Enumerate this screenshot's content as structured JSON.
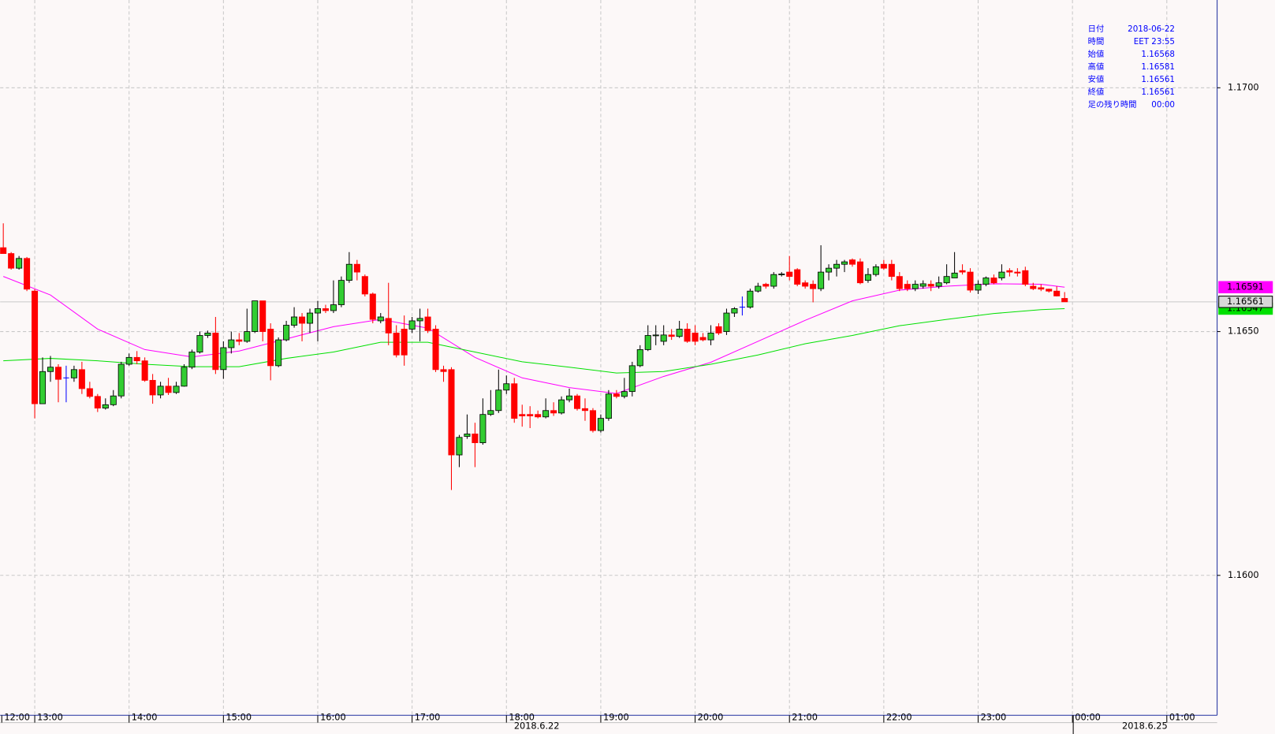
{
  "chart_data": {
    "type": "candlestick",
    "x": [
      760,
      765,
      770,
      775,
      780,
      785,
      790,
      795,
      800,
      805,
      810,
      815,
      820,
      825,
      830,
      835,
      840,
      845,
      850,
      855,
      860,
      865,
      870,
      875,
      880,
      885,
      890,
      895,
      900,
      905,
      910,
      915,
      920,
      925,
      930,
      935,
      940,
      945,
      950,
      955,
      960,
      965,
      970,
      975,
      980,
      985,
      990,
      995,
      1000,
      1005,
      1010,
      1015,
      1020,
      1025,
      1030,
      1035,
      1040,
      1045,
      1050,
      1055,
      1060,
      1065,
      1070,
      1075,
      1080,
      1085,
      1090,
      1095,
      1100,
      1105,
      1110,
      1115,
      1120,
      1125,
      1130,
      1135,
      1140,
      1145,
      1150,
      1155,
      1160,
      1165,
      1170,
      1175,
      1180,
      1185,
      1190,
      1195,
      1200,
      1205,
      1210,
      1215,
      1220,
      1225,
      1230,
      1235,
      1240,
      1245,
      1250,
      1255,
      1260,
      1265,
      1270,
      1275,
      1280,
      1285,
      1290,
      1295,
      1300,
      1305,
      1310,
      1315,
      1320,
      1325,
      1330,
      1335,
      1340,
      1345,
      1350,
      1355,
      1360,
      1365,
      1370,
      1375,
      1380,
      1385,
      1390,
      1395,
      1400,
      1405,
      1410,
      1415,
      1420,
      1425,
      1430,
      1435
    ],
    "open": [
      1.16672,
      1.1666,
      1.1663,
      1.1665,
      1.16583,
      1.16352,
      1.16418,
      1.16427,
      1.16405,
      1.16405,
      1.16422,
      1.16383,
      1.16367,
      1.16343,
      1.1635,
      1.16368,
      1.16433,
      1.16447,
      1.1644,
      1.164,
      1.1637,
      1.16388,
      1.16375,
      1.16388,
      1.16427,
      1.16458,
      1.16492,
      1.16497,
      1.16422,
      1.16467,
      1.16483,
      1.1648,
      1.165,
      1.16563,
      1.16505,
      1.1643,
      1.16483,
      1.16513,
      1.1653,
      1.16517,
      1.16538,
      1.16547,
      1.16543,
      1.16555,
      1.16605,
      1.16638,
      1.16613,
      1.16577,
      1.16522,
      1.16527,
      1.16497,
      1.16505,
      1.16505,
      1.16522,
      1.1653,
      1.16505,
      1.16422,
      1.16422,
      1.16247,
      1.16285,
      1.1629,
      1.16272,
      1.1633,
      1.16338,
      1.1638,
      1.16393,
      1.1633,
      1.1633,
      1.1633,
      1.16325,
      1.16338,
      1.16333,
      1.1636,
      1.16368,
      1.16342,
      1.16338,
      1.16297,
      1.16322,
      1.16372,
      1.16367,
      1.16377,
      1.1643,
      1.16463,
      1.16492,
      1.1648,
      1.16493,
      1.1649,
      1.16505,
      1.16497,
      1.16488,
      1.16483,
      1.1651,
      1.165,
      1.16538,
      1.1655,
      1.1655,
      1.16583,
      1.16597,
      1.16593,
      1.16617,
      1.16622,
      1.16627,
      1.166,
      1.16597,
      1.16588,
      1.16622,
      1.1663,
      1.16638,
      1.16647,
      1.16643,
      1.16605,
      1.16617,
      1.16638,
      1.16638,
      1.16613,
      1.16597,
      1.16588,
      1.16593,
      1.16597,
      1.16593,
      1.166,
      1.1661,
      1.16625,
      1.16622,
      1.16585,
      1.16597,
      1.1661,
      1.1661,
      1.16625,
      1.16622,
      1.16625,
      1.16593,
      1.1659,
      1.16587,
      1.16583,
      1.16568
    ],
    "high": [
      1.16722,
      1.16663,
      1.16655,
      1.16653,
      1.16587,
      1.16447,
      1.1645,
      1.16433,
      1.1643,
      1.1643,
      1.16438,
      1.16397,
      1.16372,
      1.16363,
      1.1638,
      1.16438,
      1.16455,
      1.1646,
      1.16447,
      1.16413,
      1.16397,
      1.16405,
      1.16397,
      1.16433,
      1.16463,
      1.165,
      1.16502,
      1.1653,
      1.1648,
      1.165,
      1.16497,
      1.16547,
      1.16563,
      1.16563,
      1.16517,
      1.16488,
      1.16522,
      1.1655,
      1.16538,
      1.16547,
      1.16563,
      1.16555,
      1.16605,
      1.16613,
      1.16663,
      1.16647,
      1.16617,
      1.1658,
      1.16538,
      1.166,
      1.16513,
      1.16533,
      1.1653,
      1.16547,
      1.16547,
      1.16513,
      1.1643,
      1.16427,
      1.16288,
      1.1633,
      1.16313,
      1.16363,
      1.1638,
      1.16422,
      1.1641,
      1.16405,
      1.1635,
      1.16347,
      1.16338,
      1.16363,
      1.16355,
      1.16367,
      1.16383,
      1.16372,
      1.16363,
      1.16343,
      1.1633,
      1.1638,
      1.1638,
      1.16405,
      1.16438,
      1.16472,
      1.16513,
      1.16513,
      1.16513,
      1.16505,
      1.16522,
      1.16517,
      1.16513,
      1.16497,
      1.16513,
      1.16517,
      1.16547,
      1.1655,
      1.16572,
      1.16588,
      1.166,
      1.166,
      1.16622,
      1.16622,
      1.16655,
      1.1663,
      1.16605,
      1.16605,
      1.16677,
      1.16638,
      1.16647,
      1.16647,
      1.1665,
      1.1665,
      1.1663,
      1.16638,
      1.16647,
      1.16647,
      1.16622,
      1.16605,
      1.16605,
      1.16605,
      1.16605,
      1.16613,
      1.16638,
      1.16663,
      1.16638,
      1.1663,
      1.16605,
      1.16613,
      1.16617,
      1.16638,
      1.1663,
      1.1663,
      1.16633,
      1.166,
      1.16597,
      1.16588,
      1.16593,
      1.16581
    ],
    "low": [
      1.1666,
      1.16627,
      1.16627,
      1.16583,
      1.16322,
      1.16352,
      1.16397,
      1.16355,
      1.16355,
      1.16397,
      1.16372,
      1.16363,
      1.16335,
      1.1634,
      1.16347,
      1.16363,
      1.1643,
      1.16433,
      1.16397,
      1.16352,
      1.16363,
      1.1637,
      1.16372,
      1.16387,
      1.16423,
      1.16455,
      1.16487,
      1.16413,
      1.16403,
      1.16455,
      1.16472,
      1.16477,
      1.16497,
      1.1648,
      1.164,
      1.16427,
      1.1648,
      1.16508,
      1.1648,
      1.16497,
      1.1648,
      1.16538,
      1.16538,
      1.1655,
      1.166,
      1.16605,
      1.16572,
      1.16517,
      1.16517,
      1.16472,
      1.16447,
      1.1643,
      1.16497,
      1.1648,
      1.16497,
      1.16417,
      1.16397,
      1.16175,
      1.16222,
      1.1628,
      1.16222,
      1.16268,
      1.16327,
      1.16333,
      1.16372,
      1.16313,
      1.16305,
      1.16302,
      1.16322,
      1.16322,
      1.16327,
      1.1633,
      1.16355,
      1.16338,
      1.16317,
      1.16293,
      1.16293,
      1.16317,
      1.16363,
      1.16363,
      1.16367,
      1.16427,
      1.1646,
      1.16472,
      1.16472,
      1.16483,
      1.16487,
      1.16477,
      1.16472,
      1.1648,
      1.16472,
      1.16493,
      1.16493,
      1.1653,
      1.16533,
      1.16547,
      1.1658,
      1.16588,
      1.16588,
      1.16613,
      1.16605,
      1.16593,
      1.16588,
      1.1656,
      1.16583,
      1.16605,
      1.16613,
      1.16622,
      1.16633,
      1.16597,
      1.166,
      1.16613,
      1.16627,
      1.16605,
      1.16583,
      1.16583,
      1.16583,
      1.16588,
      1.16583,
      1.16588,
      1.16597,
      1.1661,
      1.16617,
      1.1658,
      1.16577,
      1.16593,
      1.16597,
      1.16605,
      1.16613,
      1.16613,
      1.16593,
      1.16585,
      1.16583,
      1.1658,
      1.16572,
      1.16561
    ],
    "close": [
      1.1666,
      1.1663,
      1.1665,
      1.16587,
      1.16352,
      1.16418,
      1.16427,
      1.16402,
      1.16405,
      1.16422,
      1.16383,
      1.16367,
      1.16343,
      1.1635,
      1.16368,
      1.16433,
      1.16447,
      1.1644,
      1.164,
      1.1637,
      1.16388,
      1.16375,
      1.16388,
      1.16427,
      1.16458,
      1.16492,
      1.16497,
      1.16422,
      1.16467,
      1.16483,
      1.1648,
      1.165,
      1.16563,
      1.165,
      1.1643,
      1.16483,
      1.16513,
      1.1653,
      1.16517,
      1.16538,
      1.16547,
      1.16543,
      1.16555,
      1.16605,
      1.16638,
      1.16622,
      1.16577,
      1.16525,
      1.1653,
      1.16497,
      1.16452,
      1.16452,
      1.16522,
      1.16527,
      1.16502,
      1.16422,
      1.16418,
      1.16247,
      1.16283,
      1.1629,
      1.16272,
      1.1633,
      1.16338,
      1.1638,
      1.16393,
      1.16322,
      1.16327,
      1.16327,
      1.16325,
      1.16338,
      1.16333,
      1.1636,
      1.16368,
      1.16342,
      1.16338,
      1.16297,
      1.16322,
      1.16372,
      1.16367,
      1.16377,
      1.1643,
      1.16463,
      1.16492,
      1.16493,
      1.16493,
      1.1649,
      1.16505,
      1.1648,
      1.1648,
      1.16483,
      1.16497,
      1.16497,
      1.16538,
      1.16547,
      1.1655,
      1.16583,
      1.16593,
      1.16593,
      1.16617,
      1.16618,
      1.16613,
      1.16597,
      1.16593,
      1.16588,
      1.16622,
      1.1663,
      1.16638,
      1.16643,
      1.16638,
      1.166,
      1.16617,
      1.16633,
      1.1663,
      1.16613,
      1.16588,
      1.16588,
      1.16597,
      1.16598,
      1.16593,
      1.166,
      1.16613,
      1.1662,
      1.16622,
      1.16585,
      1.16597,
      1.1661,
      1.166,
      1.16622,
      1.16622,
      1.1662,
      1.16597,
      1.16588,
      1.16587,
      1.16583,
      1.16573,
      1.16561
    ],
    "up_color": "#32cd32",
    "down_color": "#ff0000",
    "doji_color": "#0000ff",
    "series": [
      {
        "color": "#ff00ff",
        "x": [
          760,
          790,
          820,
          850,
          880,
          910,
          940,
          970,
          1000,
          1030,
          1060,
          1090,
          1120,
          1150,
          1180,
          1210,
          1240,
          1270,
          1300,
          1330,
          1360,
          1390,
          1420,
          1435
        ],
        "values": [
          1.16613,
          1.16575,
          1.16505,
          1.16463,
          1.16448,
          1.1646,
          1.16485,
          1.1651,
          1.16525,
          1.16507,
          1.16447,
          1.16405,
          1.16385,
          1.16373,
          1.16408,
          1.16437,
          1.1648,
          1.16523,
          1.16563,
          1.16585,
          1.16593,
          1.16598,
          1.16597,
          1.16591
        ]
      },
      {
        "color": "#00e000",
        "x": [
          760,
          790,
          820,
          850,
          880,
          910,
          940,
          970,
          1000,
          1030,
          1060,
          1090,
          1120,
          1150,
          1180,
          1210,
          1240,
          1270,
          1300,
          1330,
          1360,
          1390,
          1420,
          1435
        ],
        "values": [
          1.1644,
          1.16445,
          1.1644,
          1.16433,
          1.16428,
          1.16428,
          1.16445,
          1.16458,
          1.16478,
          1.16478,
          1.16458,
          1.16438,
          1.16427,
          1.16415,
          1.16418,
          1.16433,
          1.16452,
          1.16475,
          1.16492,
          1.16512,
          1.16525,
          1.16537,
          1.16545,
          1.16547
        ]
      }
    ],
    "xlim": [
      758,
      1532
    ],
    "ylim": [
      1.15713,
      1.1718
    ],
    "xticks": [
      {
        "value": 720,
        "label": "12:00"
      },
      {
        "value": 780,
        "label": "13:00"
      },
      {
        "value": 840,
        "label": "14:00"
      },
      {
        "value": 900,
        "label": "15:00"
      },
      {
        "value": 960,
        "label": "16:00"
      },
      {
        "value": 1020,
        "label": "17:00"
      },
      {
        "value": 1080,
        "label": "18:00"
      },
      {
        "value": 1140,
        "label": "19:00"
      },
      {
        "value": 1200,
        "label": "20:00"
      },
      {
        "value": 1260,
        "label": "21:00"
      },
      {
        "value": 1320,
        "label": "22:00"
      },
      {
        "value": 1380,
        "label": "23:00"
      },
      {
        "value": 1440,
        "label": "00:00"
      },
      {
        "value": 1500,
        "label": "01:00"
      }
    ],
    "yticks": [
      {
        "value": 1.16,
        "label": "1.1600"
      },
      {
        "value": 1.165,
        "label": "1.1650"
      },
      {
        "value": 1.17,
        "label": "1.1700"
      }
    ],
    "grid": true,
    "date_labels": [
      "2018.6.22",
      "2018.6.25"
    ]
  },
  "info_panel": {
    "rows": [
      [
        "日付",
        "2018-06-22"
      ],
      [
        "時間",
        "EET 23:55"
      ],
      [
        "始値",
        "1.16568"
      ],
      [
        "高値",
        "1.16581"
      ],
      [
        "安値",
        "1.16561"
      ],
      [
        "終値",
        "1.16561"
      ],
      [
        "足の残り時間",
        "00:00"
      ]
    ]
  }
}
